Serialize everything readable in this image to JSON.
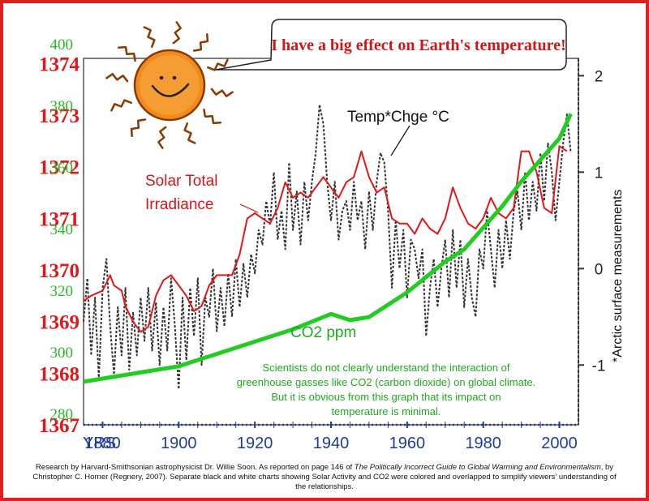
{
  "colors": {
    "solar": "#e01818",
    "co2": "#22cc22",
    "temp": "#333333",
    "years": "#1e3ca0",
    "border": "#e02020",
    "sun": "#f08a1e"
  },
  "chart_data": {
    "type": "line",
    "title": "I have a big effect on Earth's temperature!",
    "x_axis": {
      "label": "YRS",
      "range": [
        1875,
        2005
      ],
      "ticks": [
        1880,
        1900,
        1920,
        1940,
        1960,
        1980,
        2000
      ]
    },
    "solar_axis": {
      "range": [
        1367,
        1374.1
      ],
      "ticks": [
        1367,
        1368,
        1369,
        1370,
        1371,
        1372,
        1373,
        1374
      ]
    },
    "co2_axis": {
      "range": [
        276,
        395
      ],
      "ticks": [
        280,
        300,
        320,
        340,
        360,
        380,
        400
      ]
    },
    "temp_axis": {
      "label": "*Arctic surface measurements",
      "range": [
        -1.62,
        2.18
      ],
      "ticks": [
        "-1",
        "0",
        "1",
        "2"
      ],
      "tick_values": [
        -1,
        0,
        1,
        2
      ]
    },
    "labels": {
      "temp": "Temp*Chge °C",
      "solar_line1": "Solar Total",
      "solar_line2": "Irradiance",
      "co2": "CO2 ppm"
    },
    "annotation": "Scientists do not clearly understand the interaction of greenhouse gasses like CO2 (carbon dioxide) on global climate. But it is obvious from this graph that its impact on temperature is minimal.",
    "series": [
      {
        "name": "Solar Total Irradiance",
        "axis": "solar",
        "points": [
          [
            1875,
            1369.4
          ],
          [
            1877,
            1369.5
          ],
          [
            1880,
            1369.6
          ],
          [
            1882,
            1369.9
          ],
          [
            1883,
            1369.7
          ],
          [
            1885,
            1369.6
          ],
          [
            1886,
            1369.3
          ],
          [
            1888,
            1369.0
          ],
          [
            1890,
            1368.8
          ],
          [
            1892,
            1368.9
          ],
          [
            1894,
            1369.5
          ],
          [
            1896,
            1369.8
          ],
          [
            1898,
            1369.9
          ],
          [
            1900,
            1369.7
          ],
          [
            1902,
            1369.5
          ],
          [
            1904,
            1369.2
          ],
          [
            1906,
            1369.3
          ],
          [
            1908,
            1369.7
          ],
          [
            1910,
            1369.9
          ],
          [
            1912,
            1369.9
          ],
          [
            1914,
            1369.9
          ],
          [
            1916,
            1370.3
          ],
          [
            1918,
            1371.0
          ],
          [
            1920,
            1371.1
          ],
          [
            1922,
            1371.0
          ],
          [
            1924,
            1370.9
          ],
          [
            1926,
            1371.2
          ],
          [
            1928,
            1371.7
          ],
          [
            1930,
            1371.4
          ],
          [
            1932,
            1371.5
          ],
          [
            1934,
            1371.4
          ],
          [
            1936,
            1371.6
          ],
          [
            1938,
            1371.8
          ],
          [
            1940,
            1371.6
          ],
          [
            1942,
            1371.4
          ],
          [
            1944,
            1371.7
          ],
          [
            1946,
            1371.8
          ],
          [
            1948,
            1372.3
          ],
          [
            1950,
            1371.8
          ],
          [
            1952,
            1371.5
          ],
          [
            1954,
            1371.6
          ],
          [
            1956,
            1371.0
          ],
          [
            1958,
            1370.9
          ],
          [
            1960,
            1370.9
          ],
          [
            1962,
            1370.7
          ],
          [
            1964,
            1371.0
          ],
          [
            1966,
            1370.8
          ],
          [
            1968,
            1370.7
          ],
          [
            1970,
            1371.0
          ],
          [
            1972,
            1371.6
          ],
          [
            1974,
            1371.2
          ],
          [
            1976,
            1370.9
          ],
          [
            1978,
            1370.8
          ],
          [
            1980,
            1371.0
          ],
          [
            1982,
            1371.4
          ],
          [
            1984,
            1371.1
          ],
          [
            1986,
            1371.0
          ],
          [
            1988,
            1371.2
          ],
          [
            1990,
            1372.3
          ],
          [
            1992,
            1372.3
          ],
          [
            1994,
            1371.9
          ],
          [
            1996,
            1371.2
          ],
          [
            1998,
            1371.1
          ],
          [
            2000,
            1372.4
          ],
          [
            2002,
            1372.3
          ]
        ]
      },
      {
        "name": "CO2 ppm",
        "axis": "co2",
        "points": [
          [
            1875,
            290
          ],
          [
            1880,
            291
          ],
          [
            1890,
            293
          ],
          [
            1900,
            295
          ],
          [
            1910,
            299
          ],
          [
            1920,
            303
          ],
          [
            1930,
            307
          ],
          [
            1940,
            312
          ],
          [
            1945,
            310
          ],
          [
            1950,
            311
          ],
          [
            1955,
            315
          ],
          [
            1960,
            319
          ],
          [
            1965,
            324
          ],
          [
            1970,
            329
          ],
          [
            1975,
            333
          ],
          [
            1980,
            340
          ],
          [
            1985,
            347
          ],
          [
            1990,
            355
          ],
          [
            1995,
            362
          ],
          [
            2000,
            369
          ],
          [
            2003,
            377
          ]
        ]
      },
      {
        "name": "Temp Chge °C",
        "axis": "temp",
        "points": [
          [
            1875,
            -0.55
          ],
          [
            1876,
            -0.1
          ],
          [
            1877,
            -0.9
          ],
          [
            1878,
            -0.3
          ],
          [
            1879,
            -1.15
          ],
          [
            1880,
            -0.2
          ],
          [
            1881,
            0.1
          ],
          [
            1882,
            -0.6
          ],
          [
            1883,
            -1.1
          ],
          [
            1884,
            -0.4
          ],
          [
            1885,
            -0.9
          ],
          [
            1886,
            -0.2
          ],
          [
            1887,
            -1.05
          ],
          [
            1888,
            -0.45
          ],
          [
            1889,
            -0.9
          ],
          [
            1890,
            -0.3
          ],
          [
            1891,
            -0.75
          ],
          [
            1892,
            -0.2
          ],
          [
            1893,
            -0.85
          ],
          [
            1894,
            -0.35
          ],
          [
            1895,
            -1.0
          ],
          [
            1896,
            -0.4
          ],
          [
            1897,
            -0.85
          ],
          [
            1898,
            -0.1
          ],
          [
            1899,
            -0.6
          ],
          [
            1900,
            -1.25
          ],
          [
            1901,
            -0.3
          ],
          [
            1902,
            -0.95
          ],
          [
            1903,
            -0.2
          ],
          [
            1904,
            -0.7
          ],
          [
            1905,
            -0.1
          ],
          [
            1906,
            -1.0
          ],
          [
            1907,
            -0.3
          ],
          [
            1908,
            -0.5
          ],
          [
            1909,
            0.0
          ],
          [
            1910,
            -0.65
          ],
          [
            1911,
            -0.2
          ],
          [
            1912,
            -0.6
          ],
          [
            1913,
            -0.05
          ],
          [
            1914,
            -0.5
          ],
          [
            1915,
            0.1
          ],
          [
            1916,
            -0.4
          ],
          [
            1917,
            0.05
          ],
          [
            1918,
            -0.3
          ],
          [
            1919,
            0.15
          ],
          [
            1920,
            -0.05
          ],
          [
            1921,
            0.4
          ],
          [
            1922,
            0.25
          ],
          [
            1923,
            0.7
          ],
          [
            1924,
            0.45
          ],
          [
            1925,
            1.0
          ],
          [
            1926,
            0.3
          ],
          [
            1927,
            0.6
          ],
          [
            1928,
            0.2
          ],
          [
            1929,
            1.1
          ],
          [
            1930,
            0.4
          ],
          [
            1931,
            0.8
          ],
          [
            1932,
            0.25
          ],
          [
            1933,
            0.9
          ],
          [
            1934,
            0.5
          ],
          [
            1935,
            0.9
          ],
          [
            1936,
            1.2
          ],
          [
            1937,
            1.7
          ],
          [
            1938,
            1.5
          ],
          [
            1939,
            0.9
          ],
          [
            1940,
            0.5
          ],
          [
            1941,
            0.9
          ],
          [
            1942,
            0.3
          ],
          [
            1943,
            0.6
          ],
          [
            1944,
            0.7
          ],
          [
            1945,
            0.4
          ],
          [
            1946,
            0.9
          ],
          [
            1947,
            0.5
          ],
          [
            1948,
            0.7
          ],
          [
            1949,
            0.2
          ],
          [
            1950,
            0.8
          ],
          [
            1951,
            0.4
          ],
          [
            1952,
            0.9
          ],
          [
            1953,
            1.2
          ],
          [
            1954,
            1.1
          ],
          [
            1955,
            0.6
          ],
          [
            1956,
            -0.2
          ],
          [
            1957,
            0.5
          ],
          [
            1958,
            0.0
          ],
          [
            1959,
            0.4
          ],
          [
            1960,
            -0.3
          ],
          [
            1961,
            0.3
          ],
          [
            1962,
            0.2
          ],
          [
            1963,
            -0.1
          ],
          [
            1964,
            0.2
          ],
          [
            1965,
            -0.7
          ],
          [
            1966,
            -0.2
          ],
          [
            1967,
            0.1
          ],
          [
            1968,
            -0.4
          ],
          [
            1969,
            0.0
          ],
          [
            1970,
            0.3
          ],
          [
            1971,
            -0.3
          ],
          [
            1972,
            0.4
          ],
          [
            1973,
            -0.2
          ],
          [
            1974,
            0.3
          ],
          [
            1975,
            -0.4
          ],
          [
            1976,
            0.1
          ],
          [
            1977,
            -0.3
          ],
          [
            1978,
            -0.5
          ],
          [
            1979,
            0.2
          ],
          [
            1980,
            0.0
          ],
          [
            1981,
            0.6
          ],
          [
            1982,
            0.2
          ],
          [
            1983,
            -0.2
          ],
          [
            1984,
            0.4
          ],
          [
            1985,
            0.0
          ],
          [
            1986,
            0.5
          ],
          [
            1987,
            0.1
          ],
          [
            1988,
            0.6
          ],
          [
            1989,
            0.8
          ],
          [
            1990,
            0.4
          ],
          [
            1991,
            1.0
          ],
          [
            1992,
            0.5
          ],
          [
            1993,
            0.9
          ],
          [
            1994,
            0.6
          ],
          [
            1995,
            1.2
          ],
          [
            1996,
            0.7
          ],
          [
            1997,
            1.3
          ],
          [
            1998,
            1.0
          ],
          [
            1999,
            0.5
          ],
          [
            2000,
            0.9
          ],
          [
            2001,
            1.3
          ],
          [
            2002,
            1.6
          ],
          [
            2003,
            1.2
          ]
        ]
      }
    ]
  },
  "caption": {
    "prefix": "Research by Harvard-Smithsonian astrophysicist Dr. Willie Soon. As reported on page 146 of ",
    "book": "The Politically Incorrect Guide to Global Warming and Environmentalism",
    "suffix": ", by Christopher C. Horner (Regnery, 2007). Separate black and white charts showing Solar Activity and CO2 were colored and overlapped to simplify viewers' understanding of the relationships."
  }
}
